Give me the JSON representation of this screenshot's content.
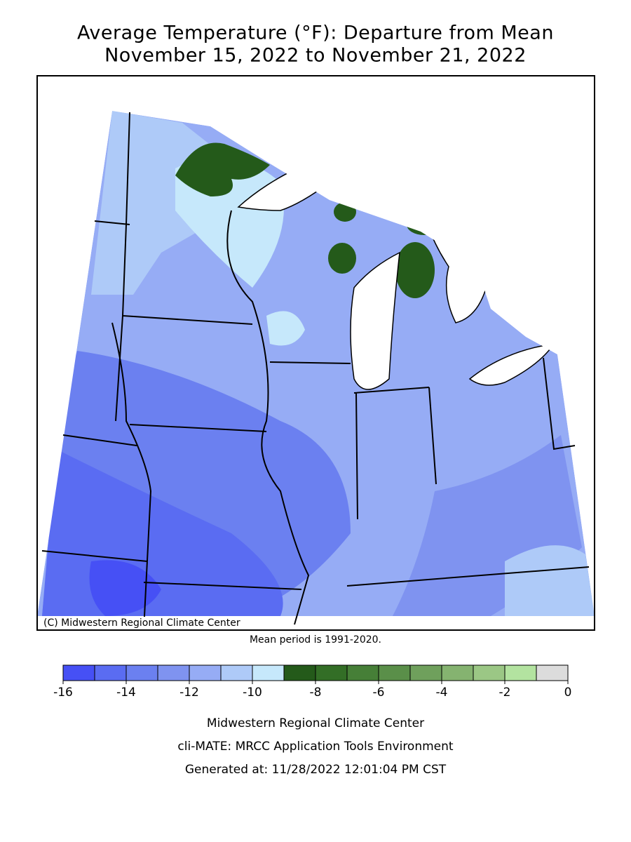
{
  "header": {
    "title": [
      "Average Temperature (°F): Departure from Mean",
      "November 15, 2022 to November 21, 2022"
    ]
  },
  "map": {
    "credit": "(C) Midwestern Regional Climate Center",
    "note": "Mean period is 1991-2020."
  },
  "colorbar": {
    "bins": [
      -16,
      -15,
      -14,
      -13,
      -12,
      -11,
      -10,
      -9,
      -8,
      -7,
      -6,
      -5,
      -4,
      -3,
      -2,
      -1,
      0
    ],
    "colors": [
      "#4650f5",
      "#5a6cf2",
      "#6b80f0",
      "#7f93f0",
      "#96acf5",
      "#aecaf8",
      "#c6e8fb",
      "#245a1a",
      "#336e26",
      "#467f37",
      "#5a8f49",
      "#6fa05c",
      "#85b370",
      "#9bc785",
      "#b3e3a0",
      "#dcdcdc"
    ],
    "ticks": [
      -16,
      -14,
      -12,
      -10,
      -8,
      -6,
      -4,
      -2,
      0
    ]
  },
  "footer": {
    "lines": [
      "Midwestern Regional Climate Center",
      "cli-MATE: MRCC Application Tools Environment",
      "Generated at: 11/28/2022 12:01:04 PM CST"
    ]
  }
}
